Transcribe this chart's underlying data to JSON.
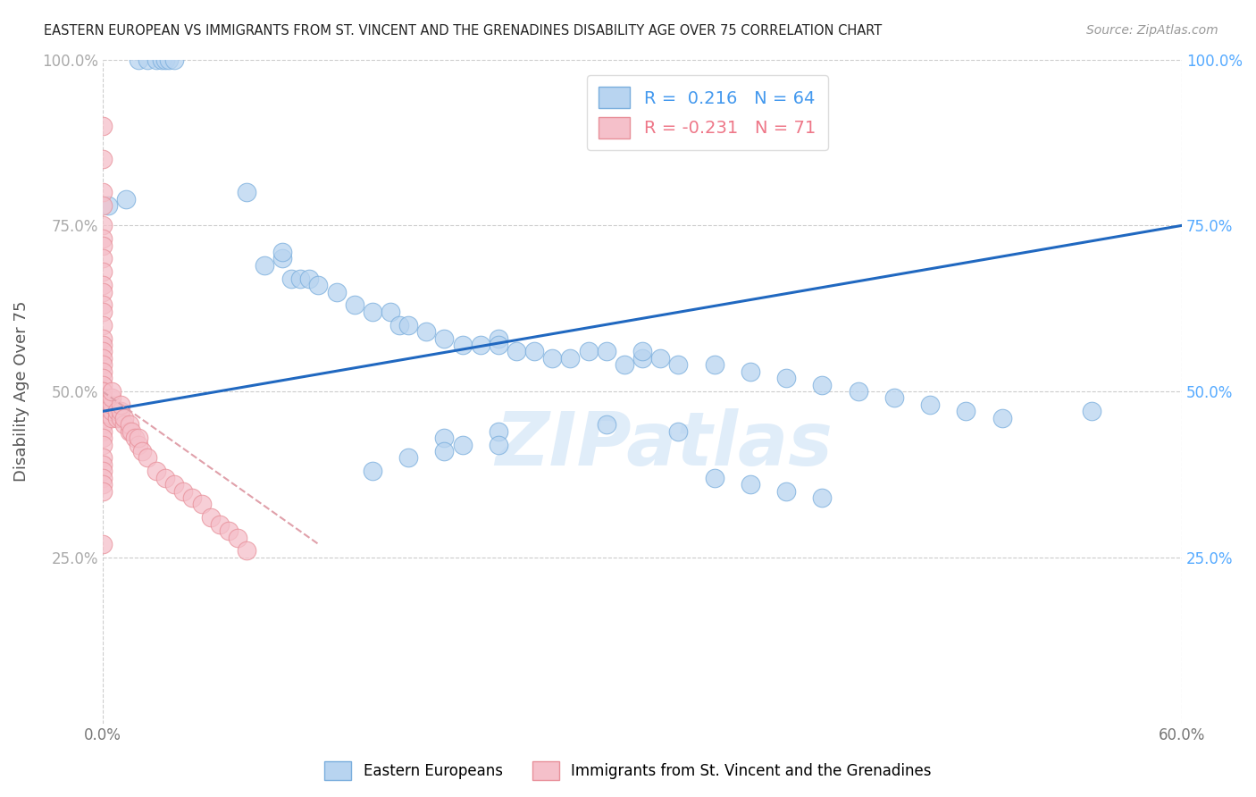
{
  "title": "EASTERN EUROPEAN VS IMMIGRANTS FROM ST. VINCENT AND THE GRENADINES DISABILITY AGE OVER 75 CORRELATION CHART",
  "source": "Source: ZipAtlas.com",
  "ylabel_label": "Disability Age Over 75",
  "r_blue": 0.216,
  "n_blue": 64,
  "r_pink": -0.231,
  "n_pink": 71,
  "xlim": [
    0.0,
    0.6
  ],
  "ylim": [
    0.0,
    1.0
  ],
  "ytick_vals": [
    0.25,
    0.5,
    0.75,
    1.0
  ],
  "ytick_labels": [
    "25.0%",
    "50.0%",
    "75.0%",
    "100.0%"
  ],
  "xtick_vals": [
    0.0,
    0.6
  ],
  "xtick_labels": [
    "0.0%",
    "60.0%"
  ],
  "watermark": "ZIPatlas",
  "blue_scatter_x": [
    0.02,
    0.025,
    0.03,
    0.033,
    0.035,
    0.037,
    0.04,
    0.013,
    0.08,
    0.09,
    0.1,
    0.1,
    0.105,
    0.11,
    0.115,
    0.12,
    0.13,
    0.14,
    0.15,
    0.16,
    0.165,
    0.17,
    0.18,
    0.19,
    0.2,
    0.21,
    0.22,
    0.22,
    0.23,
    0.24,
    0.25,
    0.26,
    0.27,
    0.28,
    0.29,
    0.3,
    0.3,
    0.31,
    0.32,
    0.34,
    0.36,
    0.38,
    0.4,
    0.42,
    0.44,
    0.46,
    0.48,
    0.5,
    0.28,
    0.22,
    0.19,
    0.32,
    0.22,
    0.2,
    0.19,
    0.17,
    0.15,
    0.34,
    0.36,
    0.38,
    0.4,
    0.005,
    0.55,
    0.003
  ],
  "blue_scatter_y": [
    1.0,
    1.0,
    1.0,
    1.0,
    1.0,
    1.0,
    1.0,
    0.79,
    0.8,
    0.69,
    0.7,
    0.71,
    0.67,
    0.67,
    0.67,
    0.66,
    0.65,
    0.63,
    0.62,
    0.62,
    0.6,
    0.6,
    0.59,
    0.58,
    0.57,
    0.57,
    0.58,
    0.57,
    0.56,
    0.56,
    0.55,
    0.55,
    0.56,
    0.56,
    0.54,
    0.55,
    0.56,
    0.55,
    0.54,
    0.54,
    0.53,
    0.52,
    0.51,
    0.5,
    0.49,
    0.48,
    0.47,
    0.46,
    0.45,
    0.44,
    0.43,
    0.44,
    0.42,
    0.42,
    0.41,
    0.4,
    0.38,
    0.37,
    0.36,
    0.35,
    0.34,
    0.47,
    0.47,
    0.78
  ],
  "pink_scatter_x": [
    0.0,
    0.0,
    0.0,
    0.0,
    0.0,
    0.0,
    0.0,
    0.0,
    0.0,
    0.0,
    0.0,
    0.0,
    0.0,
    0.0,
    0.0,
    0.0,
    0.0,
    0.0,
    0.0,
    0.0,
    0.0,
    0.0,
    0.0,
    0.0,
    0.0,
    0.0,
    0.0,
    0.0,
    0.0,
    0.0,
    0.0,
    0.0,
    0.0,
    0.0,
    0.0,
    0.0,
    0.0,
    0.0,
    0.0,
    0.0,
    0.005,
    0.005,
    0.005,
    0.005,
    0.005,
    0.008,
    0.008,
    0.01,
    0.01,
    0.01,
    0.012,
    0.012,
    0.015,
    0.015,
    0.016,
    0.018,
    0.02,
    0.02,
    0.022,
    0.025,
    0.03,
    0.035,
    0.04,
    0.045,
    0.05,
    0.055,
    0.06,
    0.065,
    0.07,
    0.075,
    0.08
  ],
  "pink_scatter_y": [
    0.9,
    0.85,
    0.8,
    0.78,
    0.75,
    0.73,
    0.72,
    0.7,
    0.68,
    0.66,
    0.65,
    0.63,
    0.62,
    0.6,
    0.58,
    0.57,
    0.56,
    0.55,
    0.54,
    0.53,
    0.52,
    0.51,
    0.5,
    0.5,
    0.49,
    0.48,
    0.47,
    0.46,
    0.46,
    0.45,
    0.44,
    0.43,
    0.42,
    0.4,
    0.39,
    0.38,
    0.37,
    0.36,
    0.35,
    0.27,
    0.46,
    0.47,
    0.48,
    0.49,
    0.5,
    0.46,
    0.47,
    0.46,
    0.47,
    0.48,
    0.45,
    0.46,
    0.44,
    0.45,
    0.44,
    0.43,
    0.42,
    0.43,
    0.41,
    0.4,
    0.38,
    0.37,
    0.36,
    0.35,
    0.34,
    0.33,
    0.31,
    0.3,
    0.29,
    0.28,
    0.26
  ],
  "blue_line_x": [
    0.0,
    0.6
  ],
  "blue_line_y": [
    0.47,
    0.75
  ],
  "pink_line_x": [
    0.0,
    0.12
  ],
  "pink_line_y": [
    0.5,
    0.27
  ]
}
